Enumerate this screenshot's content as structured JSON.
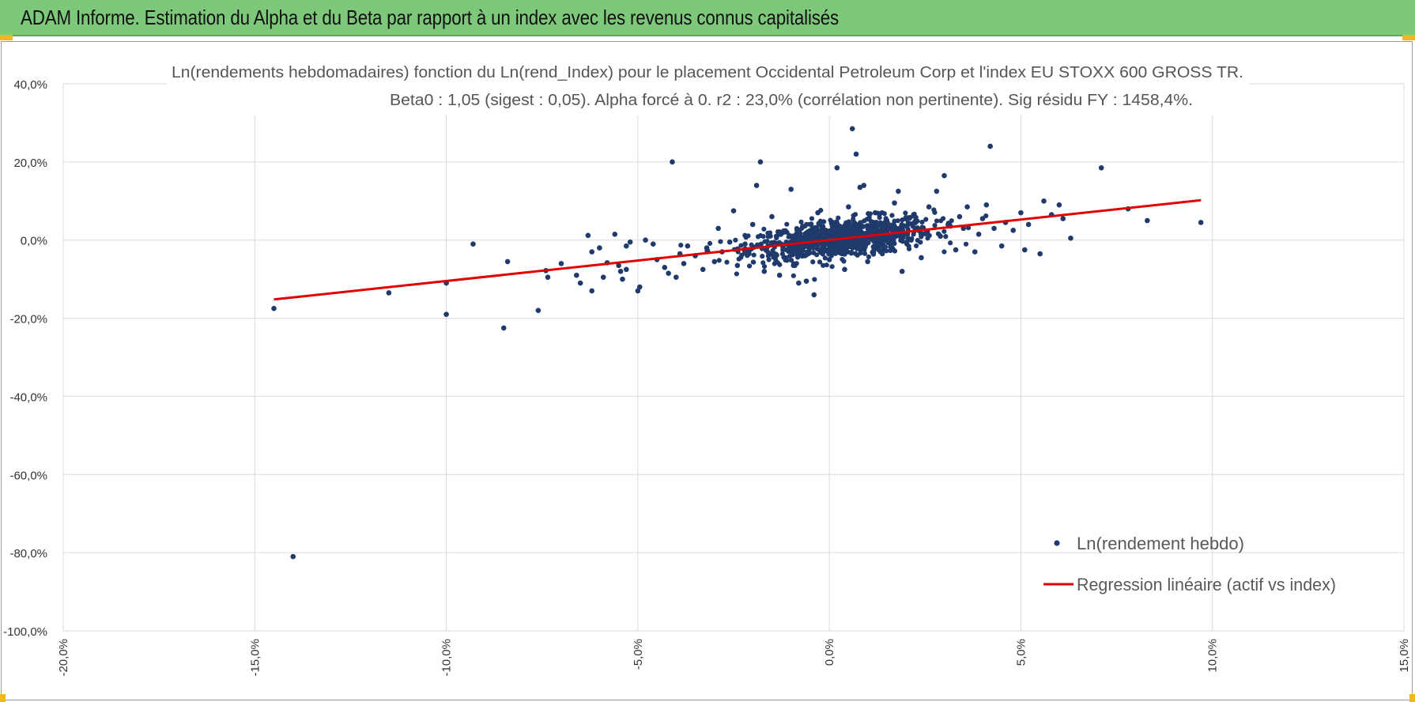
{
  "banner": {
    "title": "ADAM Informe. Estimation du Alpha et du Beta par rapport à un index avec les revenus connus capitalisés"
  },
  "colors": {
    "banner": "#7ec87c",
    "points": "#1f3a6b",
    "regression": "#e00000",
    "grid": "#d9d9d9",
    "accent": "#f2b61f"
  },
  "chart_data": {
    "type": "scatter",
    "title": "Ln(rendements hebdomadaires) fonction du Ln(rend_Index) pour le placement Occidental Petroleum Corp et l'index EU STOXX 600 GROSS TR.",
    "subtitle": "Beta0 : 1,05 (sigest : 0,05).  Alpha forcé à 0. r2 : 23,0% (corrélation non pertinente). Sig résidu FY : 1458,4%.",
    "xlim": [
      -20,
      15
    ],
    "ylim": [
      -100,
      40
    ],
    "x_ticks": [
      "-20,0%",
      "-15,0%",
      "-10,0%",
      "-5,0%",
      "0,0%",
      "5,0%",
      "10,0%",
      "15,0%"
    ],
    "y_ticks": [
      "40,0%",
      "20,0%",
      "0,0%",
      "-20,0%",
      "-40,0%",
      "-60,0%",
      "-80,0%",
      "-100,0%"
    ],
    "grid": true,
    "legend_position": "bottom-right",
    "series": [
      {
        "name": "Ln(rendement hebdo)",
        "kind": "points",
        "points": [
          [
            -14.5,
            -17.5
          ],
          [
            -14.0,
            -81.0
          ],
          [
            -11.5,
            -13.5
          ],
          [
            -10.0,
            -11.0
          ],
          [
            -10.0,
            -19.0
          ],
          [
            -9.3,
            -1.0
          ],
          [
            -8.5,
            -22.5
          ],
          [
            -8.4,
            -5.5
          ],
          [
            -7.6,
            -18.0
          ],
          [
            -7.4,
            -7.8
          ],
          [
            -7.35,
            -9.5
          ],
          [
            -7.0,
            -6.0
          ],
          [
            -6.6,
            -9.0
          ],
          [
            -6.5,
            -11.0
          ],
          [
            -6.3,
            1.2
          ],
          [
            -6.2,
            -13.0
          ],
          [
            -6.2,
            -3.0
          ],
          [
            -6.0,
            -2.0
          ],
          [
            -5.9,
            -9.5
          ],
          [
            -5.8,
            -5.8
          ],
          [
            -5.6,
            1.5
          ],
          [
            -5.5,
            -6.5
          ],
          [
            -5.45,
            -8.0
          ],
          [
            -5.4,
            -10.0
          ],
          [
            -5.3,
            -1.5
          ],
          [
            -5.3,
            -7.5
          ],
          [
            -5.2,
            -0.5
          ],
          [
            -5.0,
            -13.0
          ],
          [
            -4.95,
            -12.0
          ],
          [
            -4.8,
            0.0
          ],
          [
            -4.6,
            -1.0
          ],
          [
            -4.5,
            -5.0
          ],
          [
            -4.3,
            -7.0
          ],
          [
            -4.2,
            -8.5
          ],
          [
            -4.1,
            20.0
          ],
          [
            -4.0,
            -9.5
          ],
          [
            -3.9,
            -3.5
          ],
          [
            -3.8,
            -6.0
          ],
          [
            -3.7,
            -1.5
          ],
          [
            -3.5,
            -4.0
          ],
          [
            -3.3,
            -7.5
          ],
          [
            -3.2,
            -2.0
          ],
          [
            -3.0,
            -5.5
          ],
          [
            -2.9,
            3.0
          ],
          [
            -2.8,
            -3.0
          ],
          [
            -2.6,
            -0.5
          ],
          [
            -2.5,
            7.5
          ],
          [
            -2.4,
            -6.5
          ],
          [
            -2.2,
            -1.0
          ],
          [
            -2.1,
            -3.5
          ],
          [
            -2.0,
            4.0
          ],
          [
            -1.9,
            14.0
          ],
          [
            -1.8,
            20.0
          ],
          [
            -1.7,
            -8.0
          ],
          [
            -1.6,
            -1.5
          ],
          [
            -1.5,
            6.0
          ],
          [
            -1.4,
            -4.0
          ],
          [
            -1.3,
            -9.0
          ],
          [
            -1.2,
            2.0
          ],
          [
            -1.1,
            -2.5
          ],
          [
            -1.0,
            13.0
          ],
          [
            -0.9,
            -6.5
          ],
          [
            -0.8,
            -11.0
          ],
          [
            -0.7,
            3.5
          ],
          [
            -0.6,
            -10.5
          ],
          [
            -0.4,
            -14.0
          ],
          [
            -0.3,
            7.0
          ],
          [
            -0.2,
            -3.0
          ],
          [
            0.0,
            -5.0
          ],
          [
            0.1,
            4.5
          ],
          [
            0.2,
            18.5
          ],
          [
            0.3,
            2.0
          ],
          [
            0.4,
            -7.5
          ],
          [
            0.5,
            8.5
          ],
          [
            0.6,
            28.5
          ],
          [
            0.7,
            22.0
          ],
          [
            0.8,
            13.5
          ],
          [
            0.9,
            14.0
          ],
          [
            1.0,
            -5.5
          ],
          [
            1.2,
            7.0
          ],
          [
            1.4,
            3.5
          ],
          [
            1.5,
            5.0
          ],
          [
            1.7,
            9.5
          ],
          [
            1.8,
            12.5
          ],
          [
            1.9,
            -8.0
          ],
          [
            2.0,
            1.5
          ],
          [
            2.2,
            6.5
          ],
          [
            2.4,
            -4.5
          ],
          [
            2.6,
            8.5
          ],
          [
            2.8,
            12.5
          ],
          [
            2.9,
            1.0
          ],
          [
            3.0,
            16.5
          ],
          [
            3.1,
            4.0
          ],
          [
            3.3,
            -2.5
          ],
          [
            3.4,
            6.0
          ],
          [
            3.5,
            3.0
          ],
          [
            3.6,
            8.5
          ],
          [
            3.8,
            -3.0
          ],
          [
            3.9,
            1.5
          ],
          [
            4.0,
            5.5
          ],
          [
            4.1,
            9.0
          ],
          [
            4.2,
            24.0
          ],
          [
            4.3,
            3.0
          ],
          [
            4.5,
            -1.5
          ],
          [
            4.6,
            4.5
          ],
          [
            4.8,
            2.5
          ],
          [
            5.0,
            7.0
          ],
          [
            5.1,
            -2.5
          ],
          [
            5.2,
            4.0
          ],
          [
            5.5,
            -3.5
          ],
          [
            5.6,
            10.0
          ],
          [
            5.8,
            6.5
          ],
          [
            6.0,
            9.0
          ],
          [
            6.1,
            5.5
          ],
          [
            6.3,
            0.5
          ],
          [
            7.1,
            18.5
          ],
          [
            7.8,
            8.0
          ],
          [
            8.3,
            5.0
          ],
          [
            9.7,
            4.5
          ]
        ],
        "cluster_note": "",
        "cluster": {
          "count": 900,
          "x_mean": 0.3,
          "x_sd": 1.2,
          "beta": 1.05,
          "y_sd": 2.4
        }
      },
      {
        "name": "Regression linéaire (actif vs index)",
        "kind": "line",
        "points": [
          [
            -14.5,
            -15.2
          ],
          [
            9.7,
            10.2
          ]
        ]
      }
    ]
  }
}
